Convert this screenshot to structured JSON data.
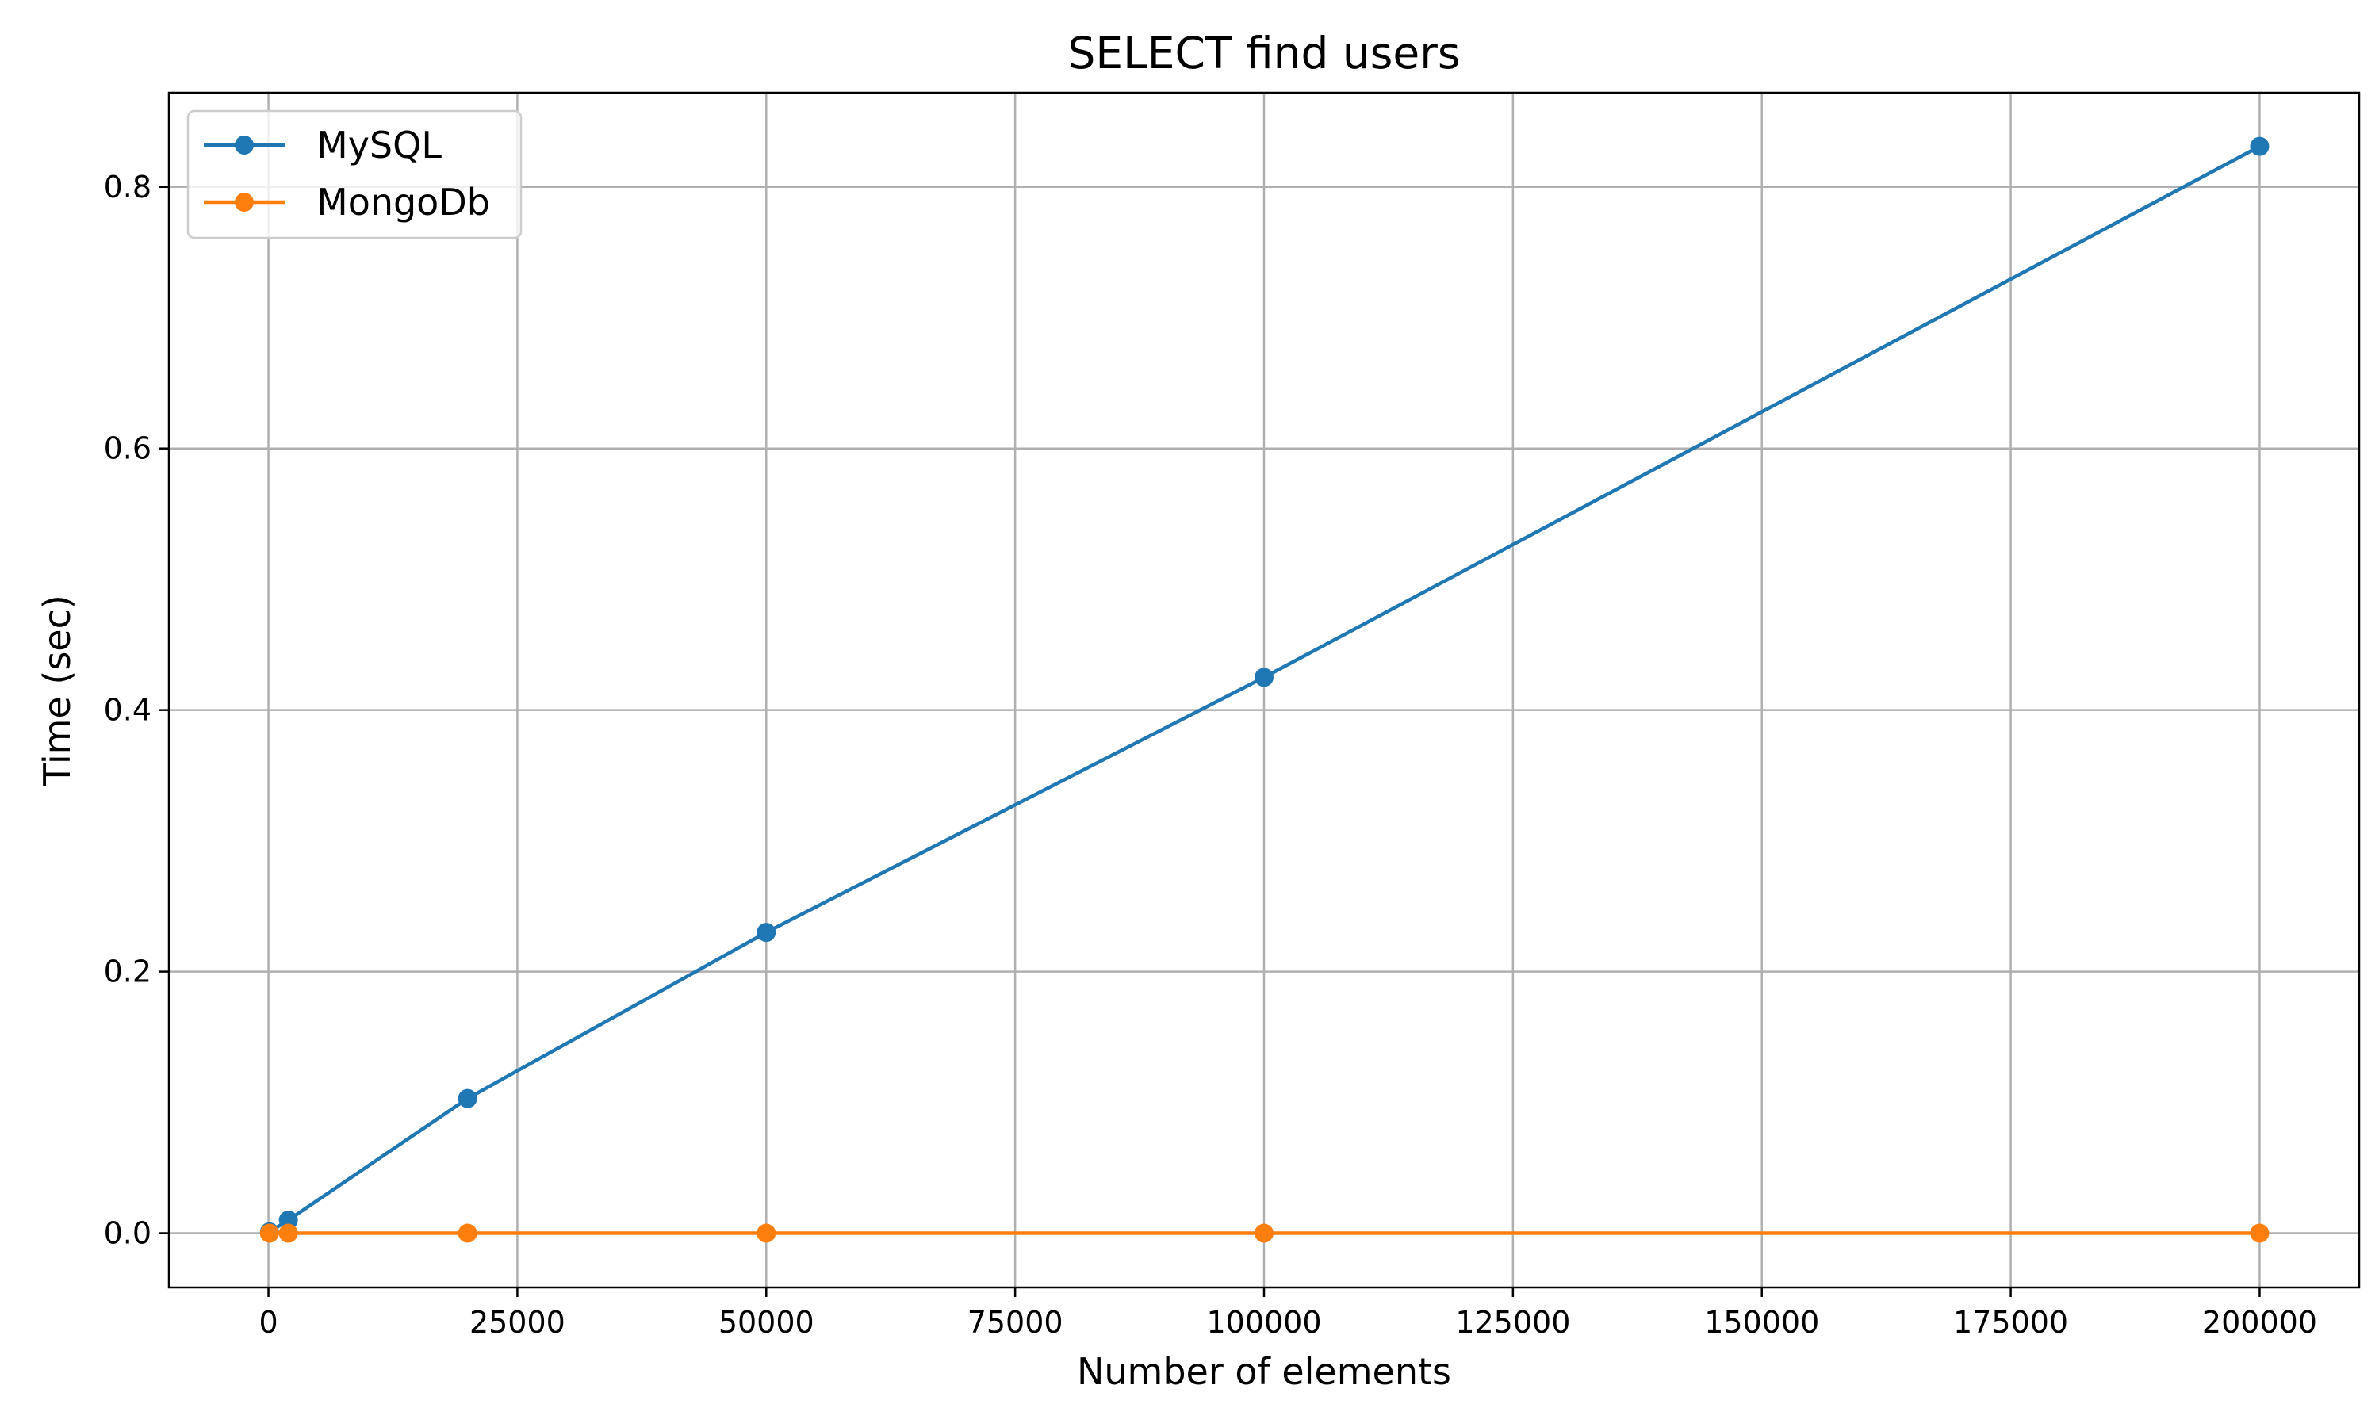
{
  "chart_data": {
    "type": "line",
    "title": "SELECT find users",
    "xlabel": "Number of elements",
    "ylabel": "Time (sec)",
    "xlim": [
      -10000,
      210000
    ],
    "ylim": [
      -0.0415,
      0.872
    ],
    "xticks": [
      0,
      25000,
      50000,
      75000,
      100000,
      125000,
      150000,
      175000,
      200000
    ],
    "yticks": [
      0.0,
      0.2,
      0.4,
      0.6,
      0.8
    ],
    "xtick_labels": [
      "0",
      "25000",
      "50000",
      "75000",
      "100000",
      "125000",
      "150000",
      "175000",
      "200000"
    ],
    "ytick_labels": [
      "0.0",
      "0.2",
      "0.4",
      "0.6",
      "0.8"
    ],
    "grid": true,
    "legend_position": "top-left",
    "x": [
      100,
      2000,
      20000,
      50000,
      100000,
      200000
    ],
    "series": [
      {
        "name": "MySQL",
        "color": "#1f77b4",
        "marker": "circle",
        "values": [
          0.001,
          0.01,
          0.103,
          0.23,
          0.425,
          0.831
        ]
      },
      {
        "name": "MongoDb",
        "color": "#ff7f0e",
        "marker": "circle",
        "values": [
          0.0,
          0.0,
          0.0,
          0.0,
          0.0,
          0.0
        ]
      }
    ]
  }
}
